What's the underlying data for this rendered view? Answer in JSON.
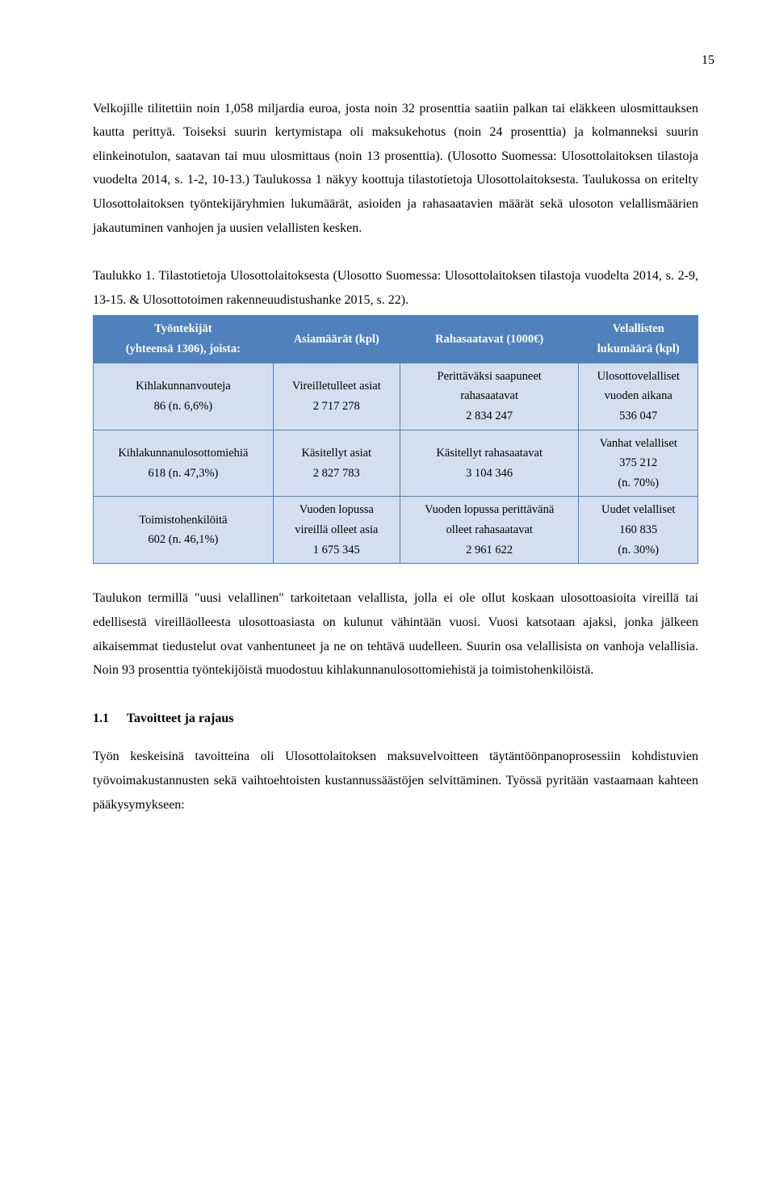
{
  "page_number": "15",
  "para1": "Velkojille tilitettiin noin 1,058 miljardia euroa, josta noin 32 prosenttia saatiin palkan tai eläkkeen ulosmittauksen kautta perittyä. Toiseksi suurin kertymistapa oli maksukehotus (noin 24 prosenttia) ja kolmanneksi suurin elinkeinotulon, saatavan tai muu ulosmittaus (noin 13 prosenttia). (Ulosotto Suomessa: Ulosottolaitoksen tilastoja vuodelta 2014, s. 1-2, 10-13.) Taulukossa 1 näkyy koottuja tilastotietoja Ulosottolaitoksesta. Taulukossa on eritelty Ulosottolaitoksen työntekijäryhmien lukumäärät, asioiden ja rahasaatavien määrät sekä ulosoton velallismäärien jakautuminen vanhojen ja uusien velallisten kesken.",
  "table_caption": "Taulukko 1. Tilastotietoja Ulosottolaitoksesta (Ulosotto Suomessa: Ulosottolaitoksen tilastoja vuodelta 2014, s. 2-9, 13-15. & Ulosottotoimen rakenneuudistushanke 2015, s. 22).",
  "table": {
    "headers": {
      "c1_l1": "Työntekijät",
      "c1_l2": "(yhteensä 1306), joista:",
      "c2": "Asiamäärät (kpl)",
      "c3": "Rahasaatavat (1000€)",
      "c4_l1": "Velallisten",
      "c4_l2": "lukumäärä (kpl)"
    },
    "row1": {
      "c1_l1": "Kihlakunnanvouteja",
      "c1_l2": "86 (n. 6,6%)",
      "c2_l1": "Vireilletulleet asiat",
      "c2_l2": "2 717 278",
      "c3_l1": "Perittäväksi saapuneet",
      "c3_l2": "rahasaatavat",
      "c3_l3": "2 834 247",
      "c4_l1": "Ulosottovelalliset",
      "c4_l2": "vuoden aikana",
      "c4_l3": "536 047"
    },
    "row2": {
      "c1_l1": "Kihlakunnanulosottomiehiä",
      "c1_l2": "618 (n. 47,3%)",
      "c2_l1": "Käsitellyt asiat",
      "c2_l2": "2 827 783",
      "c3_l1": "Käsitellyt rahasaatavat",
      "c3_l2": "3 104 346",
      "c4_l1": "Vanhat velalliset",
      "c4_l2": "375 212",
      "c4_l3": "(n. 70%)"
    },
    "row3": {
      "c1_l1": "Toimistohenkilöitä",
      "c1_l2": "602 (n. 46,1%)",
      "c2_l1": "Vuoden lopussa",
      "c2_l2": "vireillä olleet asia",
      "c2_l3": "1 675 345",
      "c3_l1": "Vuoden lopussa perittävänä",
      "c3_l2": "olleet rahasaatavat",
      "c3_l3": "2 961 622",
      "c4_l1": "Uudet velalliset",
      "c4_l2": "160 835",
      "c4_l3": "(n. 30%)"
    }
  },
  "para2": "Taulukon termillä \"uusi velallinen\" tarkoitetaan velallista, jolla ei ole ollut koskaan ulosottoasioita vireillä tai edellisestä vireilläolleesta ulosottoasiasta on kulunut vähintään vuosi. Vuosi katsotaan ajaksi, jonka jälkeen aikaisemmat tiedustelut ovat vanhentuneet ja ne on tehtävä uudelleen. Suurin osa velallisista on vanhoja velallisia. Noin 93 prosenttia työntekijöistä muodostuu kihlakunnanulosottomiehistä ja toimistohenkilöistä.",
  "section": {
    "num": "1.1",
    "title": "Tavoitteet ja rajaus"
  },
  "para3": "Työn keskeisinä tavoitteina oli Ulosottolaitoksen maksuvelvoitteen täytäntöönpanoprosessiin kohdistuvien työvoimakustannusten sekä vaihtoehtoisten kustannussäästöjen selvittäminen. Työssä pyritään vastaamaan kahteen pääkysymykseen:"
}
